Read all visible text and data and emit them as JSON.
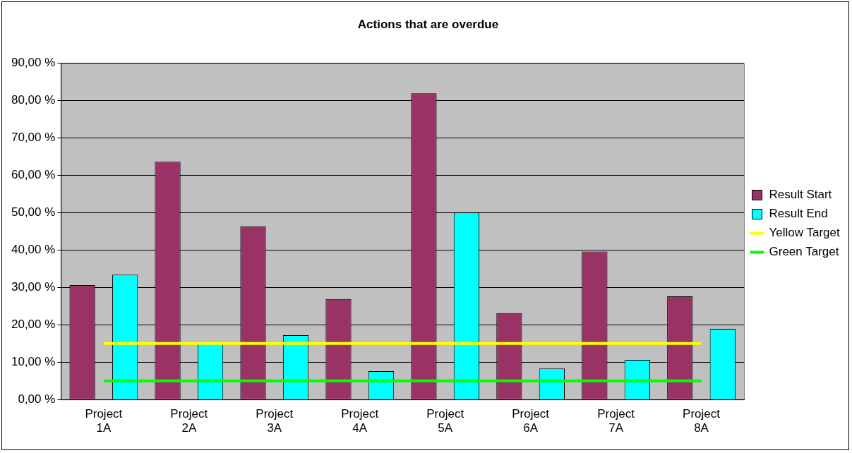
{
  "chart_data": {
    "type": "bar",
    "title": "Actions that are overdue",
    "categories": [
      "Project 1A",
      "Project 2A",
      "Project 3A",
      "Project 4A",
      "Project 5A",
      "Project 6A",
      "Project 7A",
      "Project 8A"
    ],
    "series": [
      {
        "name": "Result Start",
        "color": "#993366",
        "values": [
          30.6,
          63.6,
          46.4,
          26.9,
          81.9,
          23.1,
          39.6,
          27.6
        ]
      },
      {
        "name": "Result End",
        "color": "#00ffff",
        "values": [
          33.4,
          15,
          17.2,
          7.6,
          50,
          8.3,
          10.6,
          18.9
        ]
      },
      {
        "name": "Yellow Target",
        "type": "line",
        "color": "#ffff00",
        "values": [
          15,
          15,
          15,
          15,
          15,
          15,
          15,
          15
        ]
      },
      {
        "name": "Green Target",
        "type": "line",
        "color": "#00ff00",
        "values": [
          5,
          5,
          5,
          5,
          5,
          5,
          5,
          5
        ]
      }
    ],
    "ylim": [
      0,
      90
    ],
    "yticks": [
      {
        "value": 0,
        "label": "0,00 %"
      },
      {
        "value": 10,
        "label": "10,00 %"
      },
      {
        "value": 20,
        "label": "20,00 %"
      },
      {
        "value": 30,
        "label": "30,00 %"
      },
      {
        "value": 40,
        "label": "40,00 %"
      },
      {
        "value": 50,
        "label": "50,00 %"
      },
      {
        "value": 60,
        "label": "60,00 %"
      },
      {
        "value": 70,
        "label": "70,00 %"
      },
      {
        "value": 80,
        "label": "80,00 %"
      },
      {
        "value": 90,
        "label": "90,00 %"
      }
    ],
    "grid": "y",
    "legend": "right",
    "marker": "none",
    "line_style": "solid"
  }
}
